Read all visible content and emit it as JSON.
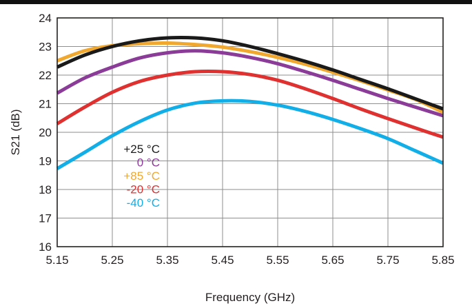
{
  "chart_data": {
    "type": "line",
    "xlabel": "Frequency (GHz)",
    "ylabel": "S21 (dB)",
    "xlim": [
      5.15,
      5.85
    ],
    "ylim": [
      16,
      24
    ],
    "x_ticks": [
      "5.15",
      "5.25",
      "5.35",
      "5.45",
      "5.55",
      "5.65",
      "5.75",
      "5.85"
    ],
    "y_ticks": [
      "16",
      "17",
      "18",
      "19",
      "20",
      "21",
      "22",
      "23",
      "24"
    ],
    "grid": true,
    "legend_placement": "lower-left inside plot",
    "x": [
      5.15,
      5.2,
      5.25,
      5.3,
      5.35,
      5.4,
      5.45,
      5.5,
      5.55,
      5.6,
      5.65,
      5.7,
      5.75,
      5.8,
      5.85
    ],
    "series": [
      {
        "name": "+25 °C",
        "color": "#1a1a1a",
        "values": [
          22.28,
          22.7,
          23.0,
          23.2,
          23.3,
          23.3,
          23.2,
          23.0,
          22.75,
          22.48,
          22.18,
          21.85,
          21.52,
          21.17,
          20.82
        ]
      },
      {
        "name": "0 °C",
        "color": "#8b3c98",
        "values": [
          21.37,
          21.9,
          22.28,
          22.6,
          22.78,
          22.85,
          22.78,
          22.62,
          22.4,
          22.12,
          21.82,
          21.5,
          21.18,
          20.88,
          20.58
        ]
      },
      {
        "name": "+85 °C",
        "color": "#f0a830",
        "values": [
          22.5,
          22.85,
          23.03,
          23.1,
          23.12,
          23.07,
          22.98,
          22.82,
          22.62,
          22.38,
          22.1,
          21.8,
          21.48,
          21.15,
          20.7
        ]
      },
      {
        "name": "-20 °C",
        "color": "#e03131",
        "values": [
          20.3,
          20.88,
          21.4,
          21.78,
          22.0,
          22.12,
          22.12,
          22.02,
          21.82,
          21.52,
          21.18,
          20.82,
          20.48,
          20.15,
          19.83
        ]
      },
      {
        "name": "-40 °C",
        "color": "#12aee8",
        "values": [
          18.73,
          19.3,
          19.88,
          20.38,
          20.78,
          21.02,
          21.1,
          21.08,
          20.95,
          20.73,
          20.45,
          20.13,
          19.78,
          19.35,
          18.92
        ]
      }
    ],
    "legend_order": [
      0,
      1,
      2,
      3,
      4
    ]
  }
}
